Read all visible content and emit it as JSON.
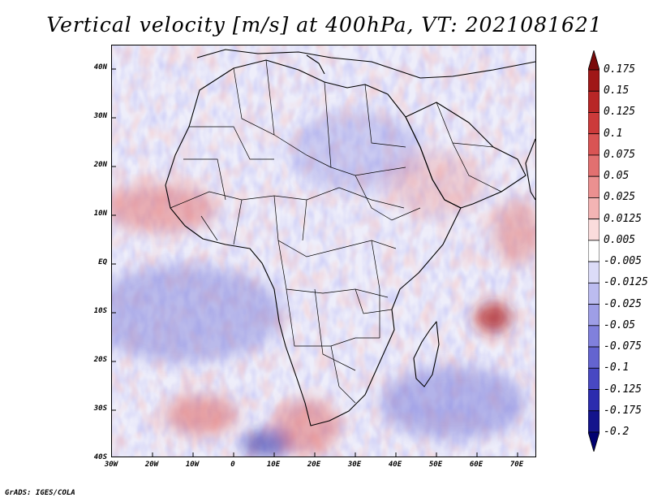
{
  "title": "Vertical velocity [m/s] at 400hPa, VT: 2021081621",
  "footer": "GrADS: IGES/COLA",
  "map": {
    "lat_ticks": [
      "40N",
      "30N",
      "20N",
      "10N",
      "EQ",
      "10S",
      "20S",
      "30S",
      "40S"
    ],
    "lon_ticks": [
      "30W",
      "20W",
      "10W",
      "0",
      "10E",
      "20E",
      "30E",
      "40E",
      "50E",
      "60E",
      "70E"
    ],
    "lon_range": [
      -30,
      75
    ],
    "lat_range": [
      -40,
      45
    ]
  },
  "colorbar": {
    "labels": [
      "0.175",
      "0.15",
      "0.125",
      "0.1",
      "0.075",
      "0.05",
      "0.025",
      "0.0125",
      "0.005",
      "-0.005",
      "-0.0125",
      "-0.025",
      "-0.05",
      "-0.075",
      "-0.1",
      "-0.125",
      "-0.175",
      "-0.2"
    ],
    "colors": [
      "#7a0a0a",
      "#a01818",
      "#b82626",
      "#cc3a3a",
      "#d95454",
      "#e27070",
      "#eb9090",
      "#f3b4b4",
      "#fadcdc",
      "#ffffff",
      "#dcdcf8",
      "#bcbcf0",
      "#9e9ee6",
      "#8080dc",
      "#6464d0",
      "#4848c2",
      "#2c2cae",
      "#14148c",
      "#000070"
    ]
  },
  "colors": {
    "land_outline": "#000000",
    "updraft": "#e07070",
    "downdraft": "#7070d8"
  }
}
